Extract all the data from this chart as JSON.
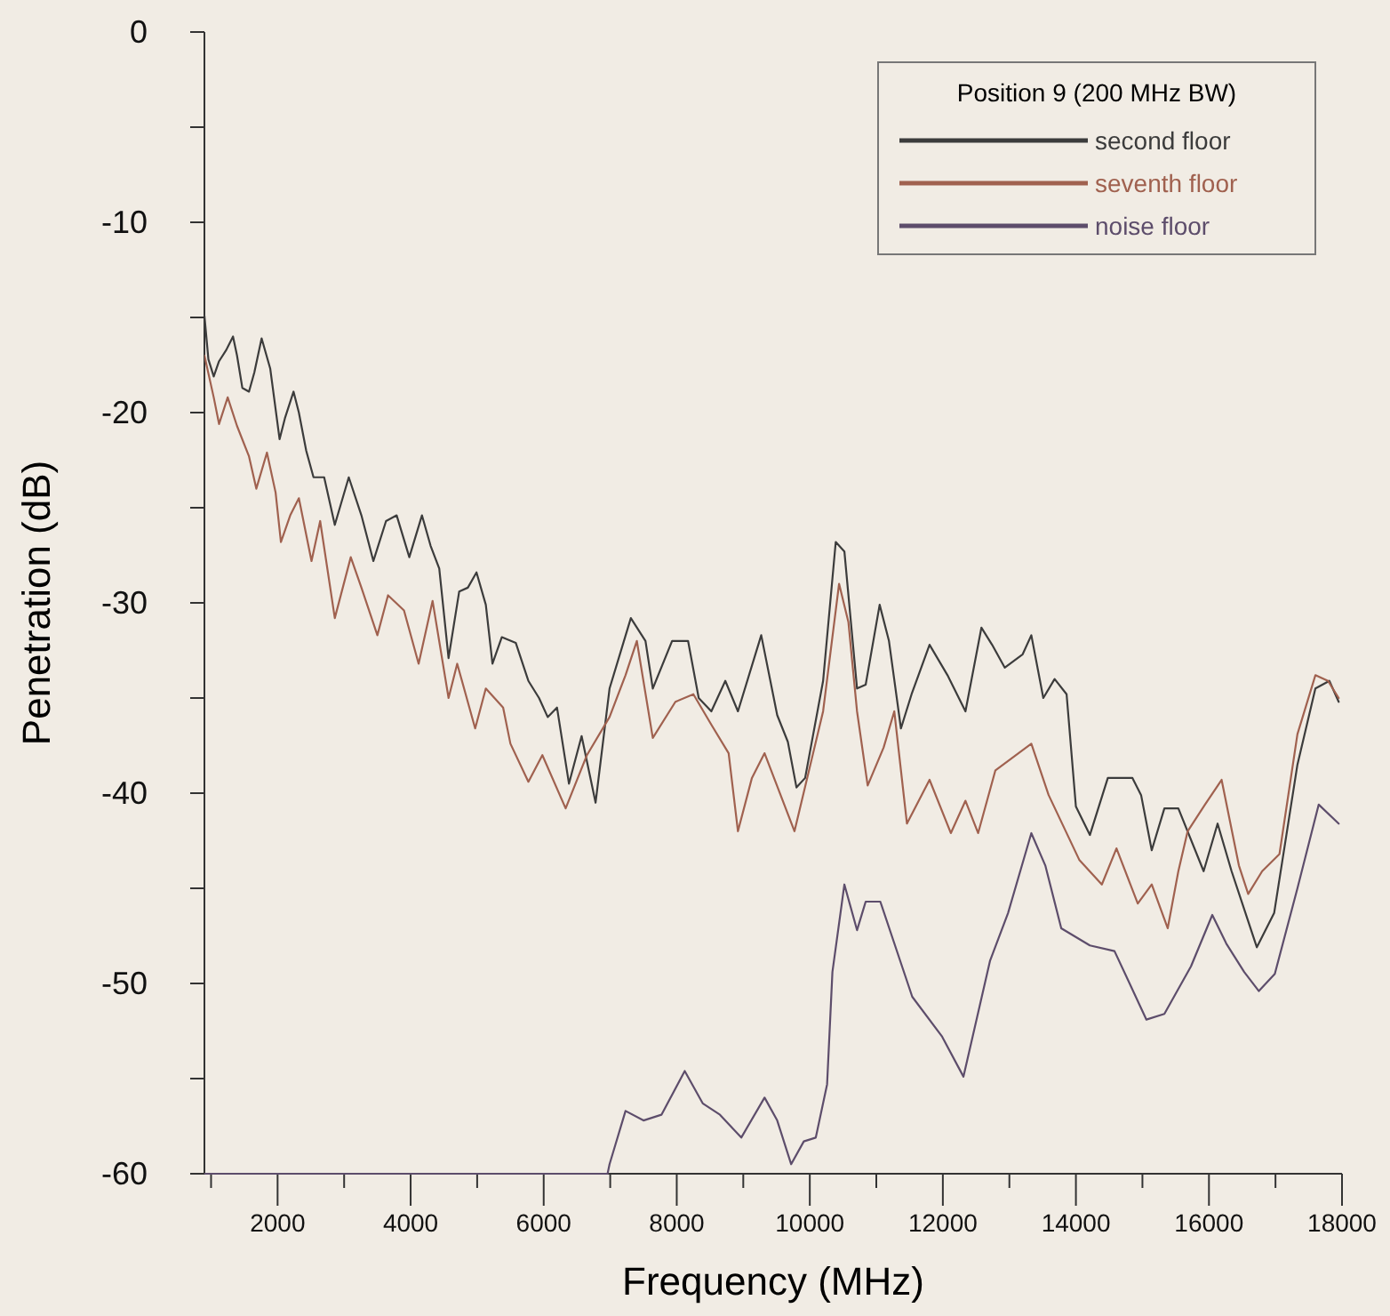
{
  "chart_data": {
    "type": "line",
    "xlabel": "Frequency (MHz)",
    "ylabel": "Penetration (dB)",
    "legend_title": "Position 9 (200 MHz BW)",
    "legend": "top right",
    "grid": false,
    "line_style": "solid",
    "marker": "none",
    "xlim": [
      900,
      18000
    ],
    "ylim": [
      -60,
      0
    ],
    "xticks": [
      {
        "value": 1000,
        "label": null
      },
      2000,
      {
        "value": 3000,
        "label": null
      },
      4000,
      {
        "value": 5000,
        "label": null
      },
      6000,
      {
        "value": 7000,
        "label": null
      },
      8000,
      {
        "value": 9000,
        "label": null
      },
      10000,
      {
        "value": 11000,
        "label": null
      },
      12000,
      {
        "value": 13000,
        "label": null
      },
      14000,
      {
        "value": 15000,
        "label": null
      },
      16000,
      {
        "value": 17000,
        "label": null
      },
      18000
    ],
    "yticks": [
      -60,
      {
        "value": -55,
        "label": null
      },
      -50,
      {
        "value": -45,
        "label": null
      },
      -40,
      {
        "value": -35,
        "label": null
      },
      -30,
      {
        "value": -25,
        "label": null
      },
      -20,
      {
        "value": -15,
        "label": null
      },
      -10,
      {
        "value": -5,
        "label": null
      },
      0
    ],
    "series": [
      {
        "name": "second floor",
        "color": "#3c3c3c",
        "x": [
          900,
          960,
          1040,
          1120,
          1230,
          1330,
          1390,
          1470,
          1570,
          1650,
          1760,
          1890,
          2030,
          2110,
          2240,
          2320,
          2430,
          2540,
          2700,
          2860,
          3070,
          3260,
          3440,
          3630,
          3790,
          3980,
          4170,
          4300,
          4430,
          4570,
          4730,
          4860,
          4990,
          5130,
          5230,
          5370,
          5580,
          5770,
          5930,
          6060,
          6200,
          6380,
          6570,
          6780,
          6990,
          7310,
          7530,
          7640,
          7930,
          8170,
          8330,
          8520,
          8730,
          8920,
          9270,
          9510,
          9670,
          9800,
          9930,
          10200,
          10390,
          10520,
          10710,
          10840,
          11050,
          11190,
          11370,
          11530,
          11800,
          12070,
          12340,
          12580,
          12740,
          12930,
          13200,
          13330,
          13510,
          13680,
          13860,
          14000,
          14210,
          14480,
          14850,
          14980,
          15140,
          15330,
          15540,
          15920,
          16130,
          16340,
          16720,
          16980,
          17330,
          17600,
          17810,
          17950
        ],
        "values": [
          -14.9,
          -17.2,
          -18.1,
          -17.3,
          -16.7,
          -16.0,
          -17.0,
          -18.7,
          -18.9,
          -17.9,
          -16.1,
          -17.7,
          -21.4,
          -20.3,
          -18.9,
          -20.0,
          -22.0,
          -23.4,
          -23.4,
          -25.9,
          -23.4,
          -25.4,
          -27.8,
          -25.7,
          -25.4,
          -27.6,
          -25.4,
          -27.0,
          -28.2,
          -32.9,
          -29.4,
          -29.2,
          -28.4,
          -30.1,
          -33.2,
          -31.8,
          -32.1,
          -34.1,
          -35.0,
          -36.0,
          -35.5,
          -39.5,
          -37.0,
          -40.5,
          -34.5,
          -30.8,
          -32.0,
          -34.5,
          -32.0,
          -32.0,
          -35.0,
          -35.7,
          -34.1,
          -35.7,
          -31.7,
          -35.9,
          -37.3,
          -39.7,
          -39.2,
          -34.1,
          -26.8,
          -27.3,
          -34.5,
          -34.3,
          -30.1,
          -32.0,
          -36.6,
          -34.8,
          -32.2,
          -33.8,
          -35.7,
          -31.3,
          -32.2,
          -33.4,
          -32.7,
          -31.7,
          -35.0,
          -34.0,
          -34.8,
          -40.7,
          -42.2,
          -39.2,
          -39.2,
          -40.1,
          -43.0,
          -40.8,
          -40.8,
          -44.1,
          -41.6,
          -44.1,
          -48.1,
          -46.3,
          -38.5,
          -34.5,
          -34.1,
          -35.2
        ]
      },
      {
        "name": "seventh floor",
        "color": "#a0614f",
        "x": [
          900,
          1040,
          1120,
          1250,
          1390,
          1570,
          1680,
          1840,
          1970,
          2050,
          2190,
          2320,
          2510,
          2640,
          2860,
          3100,
          3260,
          3500,
          3660,
          3900,
          4120,
          4330,
          4570,
          4700,
          4970,
          5130,
          5390,
          5500,
          5770,
          5980,
          6330,
          6650,
          6990,
          7230,
          7400,
          7640,
          7980,
          8250,
          8520,
          8780,
          8920,
          9130,
          9320,
          9770,
          10200,
          10440,
          10580,
          10710,
          10870,
          11110,
          11270,
          11460,
          11800,
          12120,
          12340,
          12530,
          12790,
          13330,
          13590,
          14050,
          14390,
          14610,
          14930,
          15140,
          15380,
          15540,
          15680,
          15940,
          16190,
          16450,
          16590,
          16800,
          17060,
          17330,
          17600,
          17790,
          17950
        ],
        "values": [
          -17.0,
          -19.2,
          -20.6,
          -19.2,
          -20.7,
          -22.3,
          -24.0,
          -22.1,
          -24.2,
          -26.8,
          -25.4,
          -24.5,
          -27.8,
          -25.7,
          -30.8,
          -27.6,
          -29.2,
          -31.7,
          -29.6,
          -30.4,
          -33.2,
          -29.9,
          -35.0,
          -33.2,
          -36.6,
          -34.5,
          -35.5,
          -37.4,
          -39.4,
          -38.0,
          -40.8,
          -38.0,
          -36.0,
          -33.8,
          -32.0,
          -37.1,
          -35.2,
          -34.8,
          -36.4,
          -37.9,
          -42.0,
          -39.2,
          -37.9,
          -42.0,
          -35.7,
          -29.0,
          -31.0,
          -35.7,
          -39.6,
          -37.6,
          -35.7,
          -41.6,
          -39.3,
          -42.1,
          -40.4,
          -42.1,
          -38.8,
          -37.4,
          -40.1,
          -43.5,
          -44.8,
          -42.9,
          -45.8,
          -44.8,
          -47.1,
          -44.1,
          -42.0,
          -40.6,
          -39.3,
          -43.8,
          -45.3,
          -44.1,
          -43.2,
          -36.9,
          -33.8,
          -34.1,
          -35.0
        ]
      },
      {
        "name": "noise floor",
        "color": "#5d4d6b",
        "x": [
          900,
          6960,
          6990,
          7230,
          7500,
          7770,
          8120,
          8390,
          8650,
          8970,
          9320,
          9510,
          9720,
          9910,
          10090,
          10260,
          10340,
          10520,
          10710,
          10840,
          11060,
          11540,
          11990,
          12310,
          12710,
          12980,
          13330,
          13540,
          13780,
          14210,
          14580,
          15060,
          15330,
          15730,
          16050,
          16260,
          16530,
          16750,
          16990,
          17330,
          17650,
          17950
        ],
        "values": [
          -60,
          -60,
          -59.5,
          -56.7,
          -57.2,
          -56.9,
          -54.6,
          -56.3,
          -56.9,
          -58.1,
          -56.0,
          -57.2,
          -59.5,
          -58.3,
          -58.1,
          -55.3,
          -49.4,
          -44.8,
          -47.2,
          -45.7,
          -45.7,
          -50.7,
          -52.8,
          -54.9,
          -48.8,
          -46.3,
          -42.1,
          -43.8,
          -47.1,
          -48.0,
          -48.3,
          -51.9,
          -51.6,
          -49.1,
          -46.4,
          -47.9,
          -49.4,
          -50.4,
          -49.5,
          -45.0,
          -40.6,
          -41.6
        ]
      }
    ]
  }
}
